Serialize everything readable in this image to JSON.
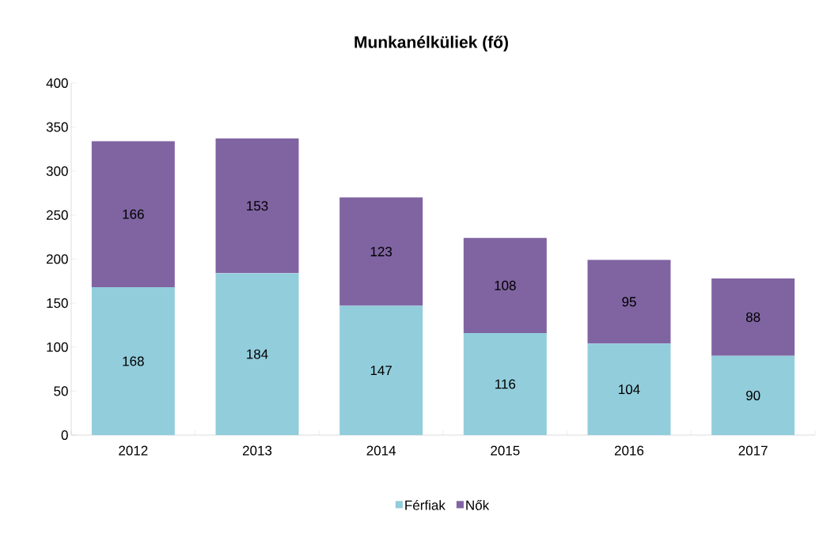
{
  "chart_data": {
    "type": "bar",
    "title": "Munkanélküliek (fő)",
    "categories": [
      "2012",
      "2013",
      "2014",
      "2015",
      "2016",
      "2017"
    ],
    "series": [
      {
        "name": "Férfiak",
        "color": "#92cddc",
        "values": [
          168,
          184,
          147,
          116,
          104,
          90
        ]
      },
      {
        "name": "Nők",
        "color": "#8064a2",
        "values": [
          166,
          153,
          123,
          108,
          95,
          88
        ]
      }
    ],
    "stacked": true,
    "data_labels": true,
    "legend": "bottom",
    "ylim": [
      0,
      400
    ],
    "yticks": [
      0,
      50,
      100,
      150,
      200,
      250,
      300,
      350,
      400
    ]
  }
}
